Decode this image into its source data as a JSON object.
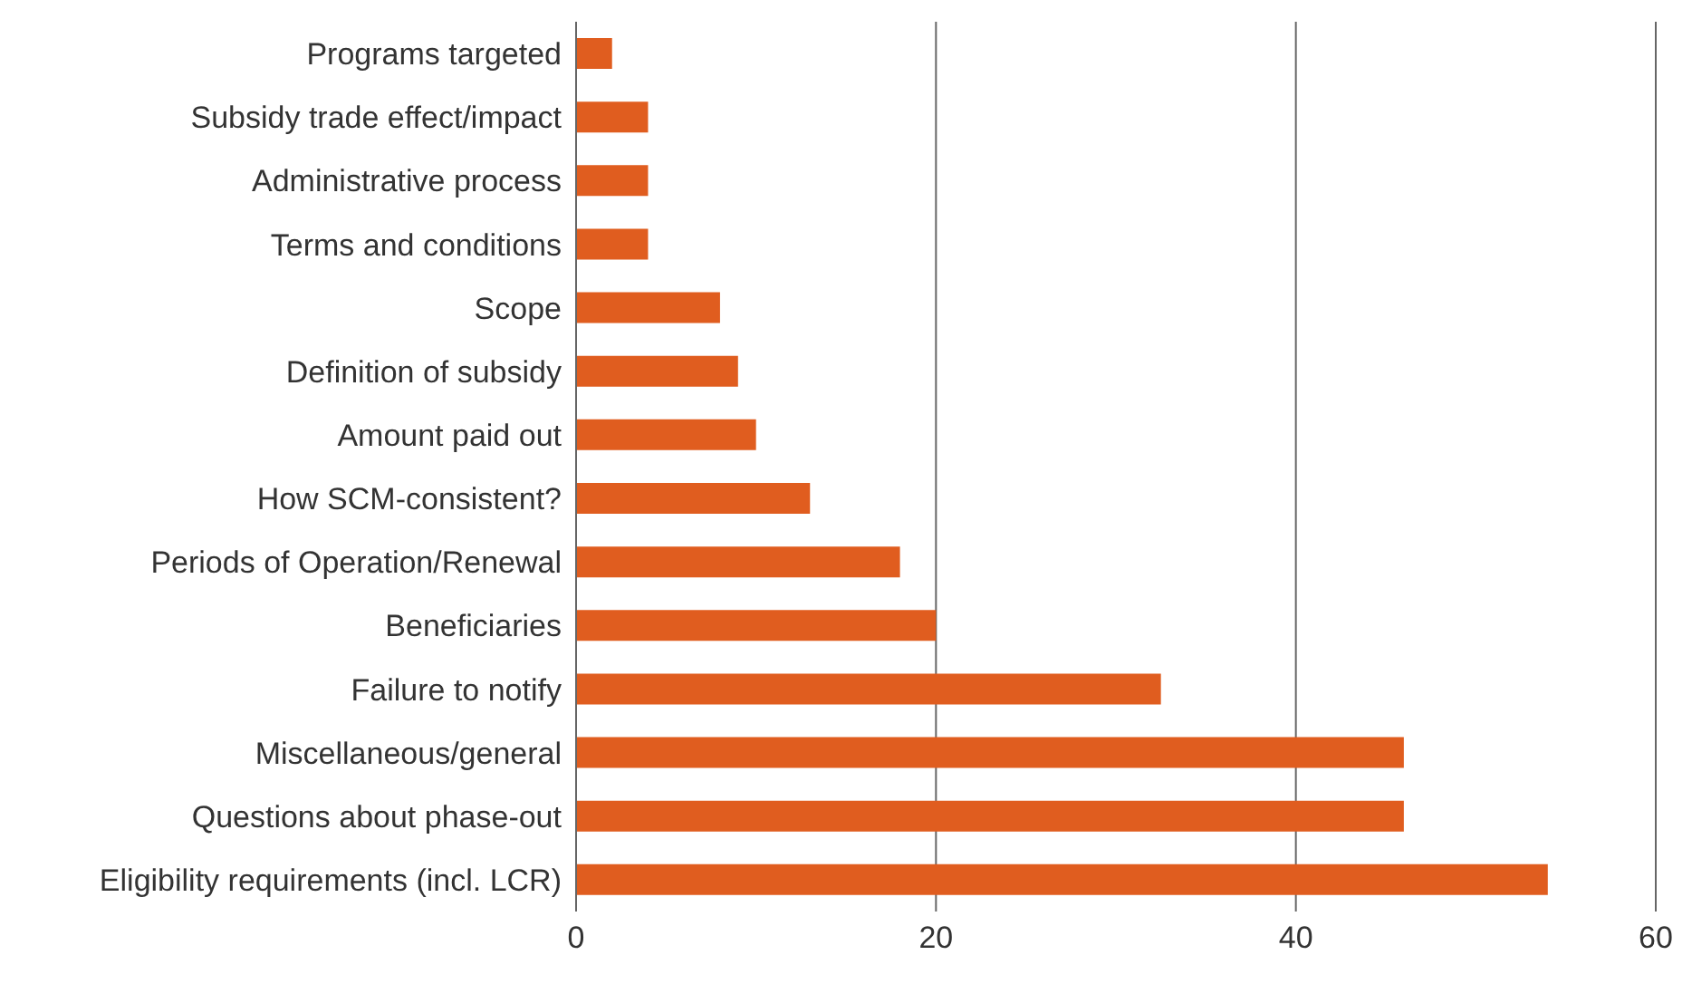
{
  "chart_data": {
    "type": "bar",
    "orientation": "horizontal",
    "categories": [
      "Programs targeted",
      "Subsidy trade effect/impact",
      "Administrative process",
      "Terms and conditions",
      "Scope",
      "Definition of subsidy",
      "Amount paid out",
      "How SCM-consistent?",
      "Periods of Operation/Renewal",
      "Beneficiaries",
      "Failure to notify",
      "Miscellaneous/general",
      "Questions about phase-out",
      "Eligibility requirements (incl. LCR)"
    ],
    "values": [
      2,
      4,
      4,
      4,
      8,
      9,
      10,
      13,
      18,
      20,
      32.5,
      46,
      46,
      54
    ],
    "color": "#e05d1f",
    "xlim": [
      0,
      60
    ],
    "xticks": [
      0,
      20,
      40,
      60
    ],
    "grid": "x"
  }
}
